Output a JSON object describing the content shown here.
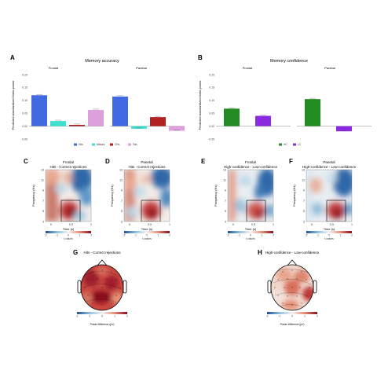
{
  "panels": {
    "A": {
      "letter": "A",
      "title": "Memory accuracy",
      "sub_left": "Frontal",
      "sub_right": "Parietal",
      "ylabel": "Predicted standardized theta power",
      "yticks": [
        "0.20",
        "0.15",
        "0.10",
        "0.05",
        "0.00",
        "-0.05"
      ]
    },
    "B": {
      "letter": "B",
      "title": "Memory confidence",
      "sub_left": "Frontal",
      "sub_right": "Parietal",
      "ylabel": "Predicted standardized theta power",
      "yticks": [
        "0.20",
        "0.15",
        "0.10",
        "0.05",
        "0.00",
        "-0.05"
      ]
    },
    "C": {
      "letter": "C",
      "title1": "Frontal",
      "title2": "Hits - Correct rejections"
    },
    "D": {
      "letter": "D",
      "title1": "Parietal",
      "title2": "Hits - Correct rejections"
    },
    "E": {
      "letter": "E",
      "title1": "Frontal",
      "title2": "High-confidence - Low-confidence"
    },
    "F": {
      "letter": "F",
      "title1": "Parietal",
      "title2": "High-confidence - Low-confidence"
    },
    "G": {
      "letter": "G",
      "title": "Hits - Correct rejections",
      "cbar_label": "Power difference (µV)"
    },
    "H": {
      "letter": "H",
      "title": "High-confidence - Low-confidence",
      "cbar_label": "Power difference (µV)"
    }
  },
  "tf": {
    "ylabel": "Frequency (Hz)",
    "xlabel": "Time (s)",
    "yticks": [
      "13",
      "11",
      "9",
      "7",
      "5",
      "3"
    ],
    "xticks": [
      "0",
      "0.5",
      "1"
    ],
    "cbar_ticks": [
      "-2",
      "-1",
      "0",
      "1",
      "2"
    ],
    "cbar_label": "t-values"
  },
  "topo_cbar_ticks": [
    "-2",
    "-1",
    "0",
    "1",
    "2"
  ],
  "colors": {
    "hits": "#4169e1",
    "misses": "#40e0d0",
    "crs": "#b22222",
    "fas": "#dda0dd",
    "hc": "#228b22",
    "lc": "#8a2be2"
  },
  "chart_data": [
    {
      "type": "bar",
      "title": "Memory accuracy",
      "ylabel": "Predicted standardized theta power",
      "ylim": [
        -0.05,
        0.2
      ],
      "legend": [
        "Hits",
        "Misses",
        "CRs",
        "FAs"
      ],
      "legend_position": "bottom",
      "facets": [
        {
          "name": "Frontal",
          "values": [
            0.12,
            0.02,
            0.005,
            0.063
          ]
        },
        {
          "name": "Parietal",
          "values": [
            0.115,
            -0.01,
            0.035,
            -0.018
          ]
        }
      ]
    },
    {
      "type": "bar",
      "title": "Memory confidence",
      "ylabel": "Predicted standardized theta power",
      "ylim": [
        -0.05,
        0.2
      ],
      "legend": [
        "HC",
        "LC"
      ],
      "legend_position": "bottom",
      "facets": [
        {
          "name": "Frontal",
          "values": [
            0.068,
            0.04
          ]
        },
        {
          "name": "Parietal",
          "values": [
            0.105,
            -0.02
          ]
        }
      ]
    }
  ]
}
